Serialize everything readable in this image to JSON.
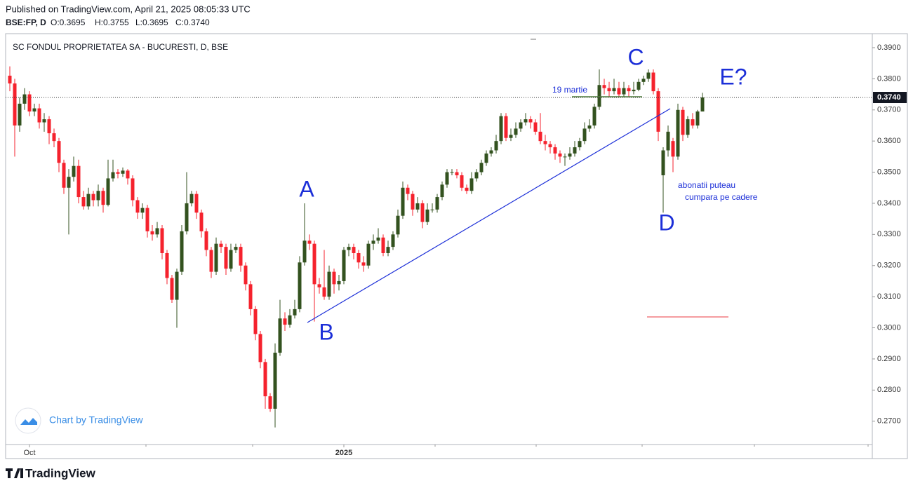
{
  "header": {
    "published": "Published on TradingView.com, April 21, 2025 08:05:33 UTC",
    "symbol": "BSE:FP, D",
    "open": "O:0.3695",
    "high": "H:0.3755",
    "low": "L:0.3695",
    "close": "C:0.3740"
  },
  "chart_data": {
    "type": "candlestick",
    "title": "SC FONDUL PROPRIETATEA SA - BUCURESTI, D, BSE",
    "up_color": "#33521f",
    "down_color": "#f5222d",
    "ylim": [
      0.2625,
      0.3945
    ],
    "yticks": [
      {
        "value": 0.27,
        "label": "0.2700"
      },
      {
        "value": 0.28,
        "label": "0.2800"
      },
      {
        "value": 0.29,
        "label": "0.2900"
      },
      {
        "value": 0.3,
        "label": "0.3000"
      },
      {
        "value": 0.31,
        "label": "0.3100"
      },
      {
        "value": 0.32,
        "label": "0.3200"
      },
      {
        "value": 0.33,
        "label": "0.3300"
      },
      {
        "value": 0.34,
        "label": "0.3400"
      },
      {
        "value": 0.35,
        "label": "0.3500"
      },
      {
        "value": 0.36,
        "label": "0.3600"
      },
      {
        "value": 0.37,
        "label": "0.3700"
      },
      {
        "value": 0.38,
        "label": "0.3800"
      },
      {
        "value": 0.39,
        "label": "0.3900"
      }
    ],
    "last_label": "0.3740",
    "categories": [
      null,
      null,
      null,
      null,
      "Oct",
      null,
      null,
      null,
      null,
      null,
      null,
      null,
      null,
      null,
      null,
      null,
      null,
      null,
      null,
      null,
      null,
      null,
      null,
      null,
      null,
      null,
      null,
      null,
      null,
      null,
      null,
      null,
      null,
      null,
      null,
      null,
      null,
      null,
      null,
      null,
      null,
      null,
      null,
      null,
      null,
      null,
      null,
      null,
      null,
      null,
      null,
      null,
      null,
      null,
      null,
      null,
      null,
      null,
      null,
      null,
      null,
      null,
      null,
      null,
      null,
      null,
      null,
      null,
      "2025",
      null,
      null,
      null,
      null,
      null,
      null,
      null,
      null,
      null,
      null,
      null,
      null,
      null,
      null,
      null,
      null,
      null,
      null,
      null,
      null,
      null,
      null,
      null,
      null,
      null,
      null,
      null,
      null,
      null,
      null,
      null,
      null,
      null,
      null,
      null,
      null,
      null,
      null,
      null,
      null,
      null,
      null,
      null,
      null,
      null,
      null,
      null,
      null,
      null,
      null,
      null,
      null,
      null,
      null,
      null,
      null,
      null,
      null,
      null,
      null,
      null,
      null,
      null,
      null,
      null,
      null,
      null,
      null,
      null,
      null,
      null,
      null,
      null
    ],
    "ohlc": [
      [
        0.381,
        0.384,
        0.376,
        0.3785
      ],
      [
        0.3785,
        0.38,
        0.355,
        0.365
      ],
      [
        0.365,
        0.374,
        0.363,
        0.372
      ],
      [
        0.372,
        0.377,
        0.37,
        0.375
      ],
      [
        0.375,
        0.376,
        0.368,
        0.3695
      ],
      [
        0.3695,
        0.372,
        0.368,
        0.3705
      ],
      [
        0.3705,
        0.372,
        0.364,
        0.366
      ],
      [
        0.366,
        0.369,
        0.363,
        0.367
      ],
      [
        0.367,
        0.368,
        0.359,
        0.3625
      ],
      [
        0.3625,
        0.364,
        0.358,
        0.36
      ],
      [
        0.36,
        0.361,
        0.35,
        0.353
      ],
      [
        0.353,
        0.354,
        0.343,
        0.345
      ],
      [
        0.345,
        0.351,
        0.33,
        0.3485
      ],
      [
        0.3485,
        0.355,
        0.347,
        0.352
      ],
      [
        0.352,
        0.354,
        0.34,
        0.342
      ],
      [
        0.342,
        0.344,
        0.338,
        0.339
      ],
      [
        0.339,
        0.345,
        0.338,
        0.343
      ],
      [
        0.343,
        0.344,
        0.339,
        0.341
      ],
      [
        0.341,
        0.346,
        0.339,
        0.344
      ],
      [
        0.344,
        0.345,
        0.337,
        0.3395
      ],
      [
        0.3395,
        0.354,
        0.339,
        0.348
      ],
      [
        0.348,
        0.354,
        0.347,
        0.35
      ],
      [
        0.35,
        0.351,
        0.348,
        0.3495
      ],
      [
        0.3495,
        0.3515,
        0.3485,
        0.3505
      ],
      [
        0.3505,
        0.351,
        0.346,
        0.348
      ],
      [
        0.348,
        0.349,
        0.339,
        0.341
      ],
      [
        0.341,
        0.342,
        0.335,
        0.337
      ],
      [
        0.337,
        0.34,
        0.335,
        0.3385
      ],
      [
        0.3385,
        0.3395,
        0.329,
        0.331
      ],
      [
        0.331,
        0.333,
        0.328,
        0.33
      ],
      [
        0.33,
        0.334,
        0.329,
        0.332
      ],
      [
        0.332,
        0.333,
        0.322,
        0.324
      ],
      [
        0.324,
        0.325,
        0.314,
        0.316
      ],
      [
        0.316,
        0.317,
        0.308,
        0.309
      ],
      [
        0.309,
        0.319,
        0.3,
        0.318
      ],
      [
        0.318,
        0.333,
        0.317,
        0.331
      ],
      [
        0.331,
        0.35,
        0.33,
        0.34
      ],
      [
        0.34,
        0.344,
        0.339,
        0.343
      ],
      [
        0.343,
        0.344,
        0.335,
        0.337
      ],
      [
        0.337,
        0.338,
        0.329,
        0.331
      ],
      [
        0.331,
        0.332,
        0.323,
        0.325
      ],
      [
        0.325,
        0.326,
        0.316,
        0.318
      ],
      [
        0.318,
        0.329,
        0.317,
        0.327
      ],
      [
        0.327,
        0.328,
        0.324,
        0.326
      ],
      [
        0.326,
        0.327,
        0.317,
        0.319
      ],
      [
        0.319,
        0.327,
        0.318,
        0.325
      ],
      [
        0.325,
        0.327,
        0.324,
        0.326
      ],
      [
        0.326,
        0.327,
        0.318,
        0.32
      ],
      [
        0.32,
        0.321,
        0.312,
        0.314
      ],
      [
        0.314,
        0.315,
        0.304,
        0.306
      ],
      [
        0.306,
        0.307,
        0.296,
        0.298
      ],
      [
        0.298,
        0.299,
        0.287,
        0.289
      ],
      [
        0.289,
        0.29,
        0.274,
        0.278
      ],
      [
        0.278,
        0.279,
        0.273,
        0.274
      ],
      [
        0.274,
        0.295,
        0.268,
        0.292
      ],
      [
        0.292,
        0.309,
        0.291,
        0.303
      ],
      [
        0.303,
        0.305,
        0.299,
        0.301
      ],
      [
        0.301,
        0.306,
        0.3,
        0.304
      ],
      [
        0.304,
        0.309,
        0.303,
        0.306
      ],
      [
        0.306,
        0.323,
        0.305,
        0.321
      ],
      [
        0.321,
        0.34,
        0.32,
        0.328
      ],
      [
        0.328,
        0.33,
        0.325,
        0.327
      ],
      [
        0.327,
        0.328,
        0.302,
        0.314
      ],
      [
        0.314,
        0.316,
        0.311,
        0.313
      ],
      [
        0.313,
        0.325,
        0.309,
        0.31
      ],
      [
        0.31,
        0.32,
        0.309,
        0.318
      ],
      [
        0.318,
        0.319,
        0.311,
        0.314
      ],
      [
        0.314,
        0.317,
        0.312,
        0.315
      ],
      [
        0.315,
        0.326,
        0.314,
        0.325
      ],
      [
        0.325,
        0.327,
        0.323,
        0.326
      ],
      [
        0.326,
        0.327,
        0.322,
        0.324
      ],
      [
        0.324,
        0.325,
        0.319,
        0.321
      ],
      [
        0.321,
        0.323,
        0.318,
        0.32
      ],
      [
        0.32,
        0.328,
        0.319,
        0.327
      ],
      [
        0.327,
        0.33,
        0.325,
        0.328
      ],
      [
        0.328,
        0.332,
        0.327,
        0.329
      ],
      [
        0.329,
        0.33,
        0.323,
        0.324
      ],
      [
        0.324,
        0.328,
        0.323,
        0.326
      ],
      [
        0.326,
        0.331,
        0.325,
        0.33
      ],
      [
        0.33,
        0.338,
        0.329,
        0.336
      ],
      [
        0.336,
        0.347,
        0.335,
        0.345
      ],
      [
        0.345,
        0.346,
        0.341,
        0.343
      ],
      [
        0.343,
        0.344,
        0.336,
        0.338
      ],
      [
        0.338,
        0.342,
        0.337,
        0.34
      ],
      [
        0.34,
        0.341,
        0.332,
        0.334
      ],
      [
        0.334,
        0.34,
        0.333,
        0.338
      ],
      [
        0.338,
        0.34,
        0.337,
        0.338
      ],
      [
        0.338,
        0.343,
        0.337,
        0.342
      ],
      [
        0.342,
        0.347,
        0.341,
        0.346
      ],
      [
        0.346,
        0.351,
        0.345,
        0.35
      ],
      [
        0.35,
        0.351,
        0.349,
        0.35
      ],
      [
        0.35,
        0.351,
        0.348,
        0.349
      ],
      [
        0.349,
        0.35,
        0.344,
        0.345
      ],
      [
        0.345,
        0.346,
        0.343,
        0.344
      ],
      [
        0.344,
        0.35,
        0.343,
        0.348
      ],
      [
        0.348,
        0.351,
        0.347,
        0.35
      ],
      [
        0.35,
        0.354,
        0.349,
        0.353
      ],
      [
        0.353,
        0.357,
        0.352,
        0.356
      ],
      [
        0.356,
        0.358,
        0.355,
        0.357
      ],
      [
        0.357,
        0.362,
        0.356,
        0.36
      ],
      [
        0.36,
        0.369,
        0.359,
        0.368
      ],
      [
        0.368,
        0.369,
        0.36,
        0.361
      ],
      [
        0.361,
        0.364,
        0.36,
        0.362
      ],
      [
        0.362,
        0.366,
        0.361,
        0.364
      ],
      [
        0.364,
        0.367,
        0.363,
        0.366
      ],
      [
        0.366,
        0.369,
        0.365,
        0.367
      ],
      [
        0.367,
        0.368,
        0.364,
        0.366
      ],
      [
        0.366,
        0.367,
        0.362,
        0.363
      ],
      [
        0.363,
        0.369,
        0.359,
        0.36
      ],
      [
        0.36,
        0.362,
        0.357,
        0.359
      ],
      [
        0.359,
        0.36,
        0.356,
        0.358
      ],
      [
        0.358,
        0.359,
        0.354,
        0.356
      ],
      [
        0.356,
        0.357,
        0.353,
        0.355
      ],
      [
        0.355,
        0.356,
        0.352,
        0.355
      ],
      [
        0.355,
        0.358,
        0.354,
        0.356
      ],
      [
        0.356,
        0.36,
        0.355,
        0.358
      ],
      [
        0.358,
        0.361,
        0.357,
        0.36
      ],
      [
        0.36,
        0.366,
        0.359,
        0.364
      ],
      [
        0.364,
        0.367,
        0.363,
        0.365
      ],
      [
        0.365,
        0.372,
        0.364,
        0.371
      ],
      [
        0.371,
        0.383,
        0.37,
        0.378
      ],
      [
        0.378,
        0.38,
        0.375,
        0.377
      ],
      [
        0.377,
        0.379,
        0.374,
        0.376
      ],
      [
        0.376,
        0.38,
        0.375,
        0.377
      ],
      [
        0.377,
        0.379,
        0.374,
        0.375
      ],
      [
        0.375,
        0.379,
        0.374,
        0.377
      ],
      [
        0.377,
        0.378,
        0.374,
        0.376
      ],
      [
        0.376,
        0.379,
        0.375,
        0.3765
      ],
      [
        0.3765,
        0.38,
        0.376,
        0.379
      ],
      [
        0.379,
        0.381,
        0.378,
        0.38
      ],
      [
        0.38,
        0.383,
        0.379,
        0.382
      ],
      [
        0.382,
        0.383,
        0.375,
        0.376
      ],
      [
        0.376,
        0.377,
        0.36,
        0.363
      ],
      [
        0.349,
        0.358,
        0.337,
        0.357
      ],
      [
        0.357,
        0.365,
        0.355,
        0.363
      ],
      [
        0.36,
        0.361,
        0.35,
        0.355
      ],
      [
        0.355,
        0.372,
        0.354,
        0.37
      ],
      [
        0.37,
        0.371,
        0.36,
        0.362
      ],
      [
        0.362,
        0.368,
        0.361,
        0.367
      ],
      [
        0.367,
        0.369,
        0.364,
        0.365
      ],
      [
        0.365,
        0.37,
        0.364,
        0.3695
      ],
      [
        0.3695,
        0.3755,
        0.3695,
        0.374
      ]
    ],
    "annotations": [
      "A",
      "B",
      "C",
      "D",
      "E?",
      "19 martie",
      "abonatii puteau",
      "cumpara pe cadere"
    ],
    "watermark": "Chart by TradingView"
  },
  "footer": {
    "brand": "TradingView"
  }
}
